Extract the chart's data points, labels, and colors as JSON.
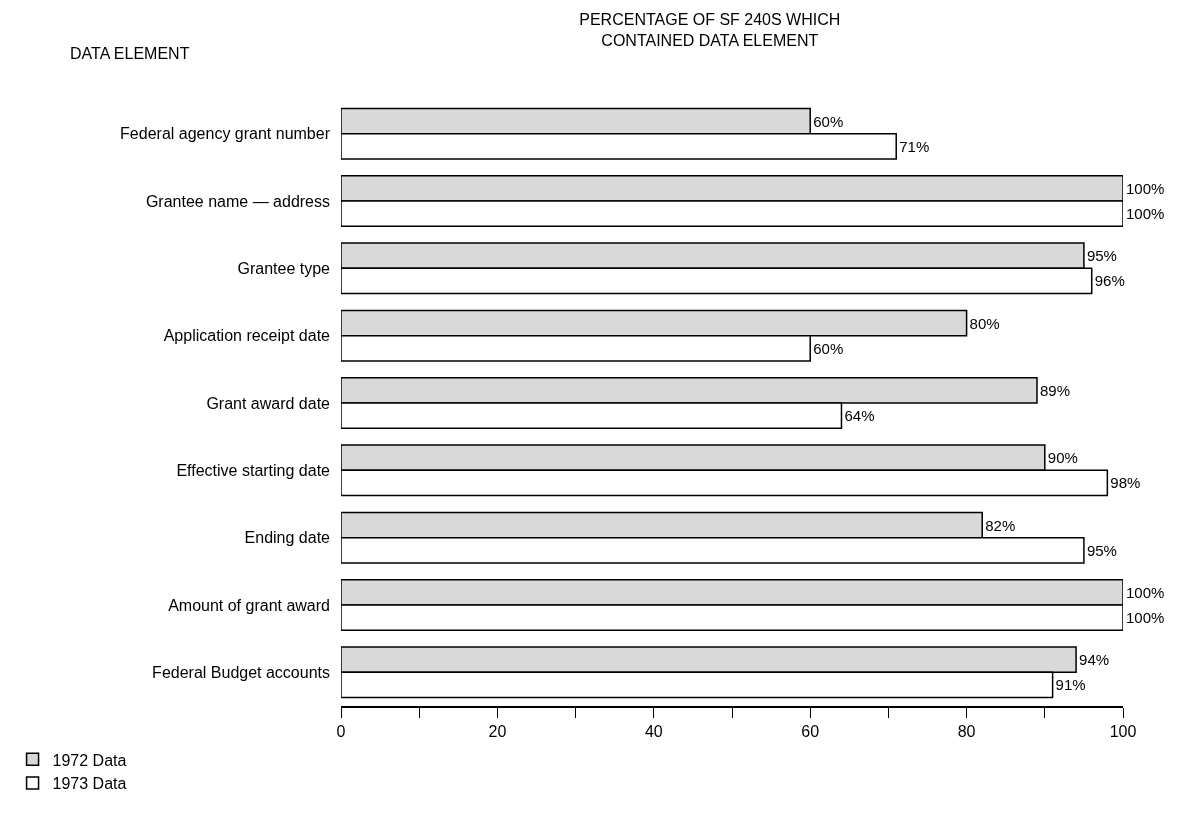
{
  "chart_data": {
    "type": "bar",
    "orientation": "horizontal",
    "title": "PERCENTAGE OF SF 240S WHICH\nCONTAINED DATA ELEMENT",
    "ylabel": "DATA ELEMENT",
    "categories": [
      "Federal agency grant number",
      "Grantee name — address",
      "Grantee type",
      "Application receipt date",
      "Grant award date",
      "Effective starting date",
      "Ending date",
      "Amount of grant award",
      "Federal Budget accounts"
    ],
    "series": [
      {
        "name": "1972 Data",
        "color": "#d9d9d9",
        "values": [
          60,
          100,
          95,
          80,
          89,
          90,
          82,
          100,
          94
        ],
        "value_labels": [
          "60%",
          "100%",
          "95%",
          "80%",
          "89%",
          "90%",
          "82%",
          "100%",
          "94%"
        ]
      },
      {
        "name": "1973 Data",
        "color": "#ffffff",
        "values": [
          71,
          100,
          96,
          60,
          64,
          98,
          95,
          100,
          91
        ],
        "value_labels": [
          "71%",
          "100%",
          "96%",
          "60%",
          "64%",
          "98%",
          "95%",
          "100%",
          "91%"
        ]
      }
    ],
    "xlim": [
      0,
      100
    ],
    "xticks": [
      0,
      {
        "value": 10,
        "label": null
      },
      20,
      {
        "value": 30,
        "label": null
      },
      40,
      {
        "value": 50,
        "label": null
      },
      60,
      {
        "value": 70,
        "label": null
      },
      80,
      {
        "value": 90,
        "label": null
      },
      100
    ],
    "legend": "bottom left"
  }
}
